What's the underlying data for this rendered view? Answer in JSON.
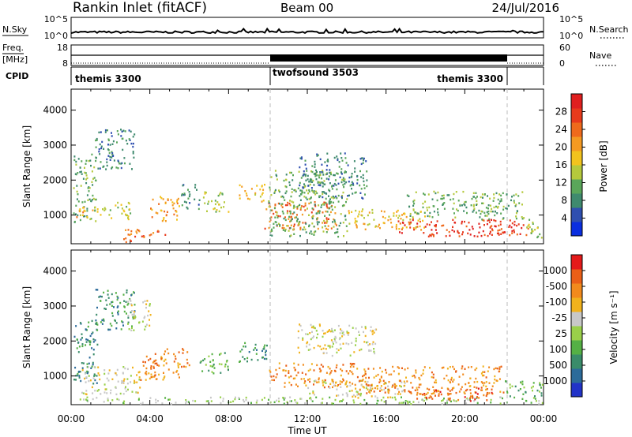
{
  "header": {
    "station": "Rankin Inlet (fitACF)",
    "beam": "Beam 00",
    "date": "24/Jul/2016"
  },
  "status_panels": {
    "nsky": {
      "label": "N.Sky",
      "ticks_left": [
        "10^5",
        "10^0"
      ],
      "ticks_right": [
        "10^5",
        "10^0"
      ],
      "right_label": "N.Search"
    },
    "freq": {
      "label_top": "Freq.",
      "label_bottom": "[MHz]",
      "ticks_left": [
        "18",
        "8"
      ],
      "ticks_right": [
        "60",
        "0"
      ],
      "right_label": "Nave"
    },
    "cpid": {
      "label": "CPID",
      "segments": [
        {
          "name": "themis 3300",
          "start_hr": 0,
          "end_hr": 10
        },
        {
          "name": "twofsound 3503",
          "start_hr": 10,
          "end_hr": 22
        },
        {
          "name": "themis 3300",
          "start_hr": 22,
          "end_hr": 24
        }
      ]
    }
  },
  "chart_data": [
    {
      "type": "heatmap",
      "name": "power",
      "ylabel": "Slant Range [km]",
      "ylim": [
        180,
        4600
      ],
      "yticks": [
        "1000",
        "2000",
        "3000",
        "4000"
      ],
      "xlim_hours": [
        0,
        24
      ],
      "xticks": [
        "00:00",
        "04:00",
        "08:00",
        "12:00",
        "16:00",
        "20:00",
        "00:00"
      ],
      "xlabel": "Time UT",
      "colorbar": {
        "label": "Power [dB]",
        "ticks": [
          "4",
          "8",
          "12",
          "16",
          "20",
          "24",
          "28"
        ],
        "colors": [
          "#0a2ee0",
          "#2f4fb0",
          "#3f8a6e",
          "#5aa65a",
          "#b5c93c",
          "#f2c31d",
          "#f49a22",
          "#ef6a1c",
          "#e83a1c",
          "#e01f1f"
        ]
      },
      "regions": [
        {
          "t": [
            0.1,
            1.3
          ],
          "r": [
            800,
            2800
          ],
          "level": 3
        },
        {
          "t": [
            0.2,
            1.1
          ],
          "r": [
            950,
            1300
          ],
          "level": 6
        },
        {
          "t": [
            1.2,
            3.2
          ],
          "r": [
            2300,
            3500
          ],
          "level": 2
        },
        {
          "t": [
            1.3,
            3.0
          ],
          "r": [
            900,
            1400
          ],
          "level": 4
        },
        {
          "t": [
            2.6,
            3.3
          ],
          "r": [
            250,
            700
          ],
          "level": 7
        },
        {
          "t": [
            3.0,
            5.0
          ],
          "r": [
            380,
            620
          ],
          "level": 7
        },
        {
          "t": [
            4.0,
            5.5
          ],
          "r": [
            850,
            1600
          ],
          "level": 6
        },
        {
          "t": [
            5.5,
            6.5
          ],
          "r": [
            1200,
            1900
          ],
          "level": 2
        },
        {
          "t": [
            6.7,
            8.0
          ],
          "r": [
            1100,
            1700
          ],
          "level": 4
        },
        {
          "t": [
            8.5,
            9.8
          ],
          "r": [
            1400,
            1900
          ],
          "level": 5
        },
        {
          "t": [
            9.8,
            13.5
          ],
          "r": [
            600,
            1400
          ],
          "level": 7
        },
        {
          "t": [
            10.0,
            14.0
          ],
          "r": [
            400,
            2300
          ],
          "level": 3
        },
        {
          "t": [
            11.5,
            15.0
          ],
          "r": [
            1500,
            2800
          ],
          "level": 2
        },
        {
          "t": [
            14.0,
            18.0
          ],
          "r": [
            600,
            1200
          ],
          "level": 5
        },
        {
          "t": [
            16.5,
            22.5
          ],
          "r": [
            400,
            900
          ],
          "level": 8
        },
        {
          "t": [
            17.0,
            23.0
          ],
          "r": [
            900,
            1700
          ],
          "level": 3
        },
        {
          "t": [
            21.5,
            23.2
          ],
          "r": [
            450,
            800
          ],
          "level": 8
        },
        {
          "t": [
            23.0,
            24.0
          ],
          "r": [
            300,
            900
          ],
          "level": 4
        }
      ]
    },
    {
      "type": "heatmap",
      "name": "velocity",
      "ylabel": "Slant Range [km]",
      "ylim": [
        180,
        4600
      ],
      "yticks": [
        "1000",
        "2000",
        "3000",
        "4000"
      ],
      "xlim_hours": [
        0,
        24
      ],
      "xticks": [
        "00:00",
        "04:00",
        "08:00",
        "12:00",
        "16:00",
        "20:00",
        "00:00"
      ],
      "xlabel": "Time UT",
      "colorbar": {
        "label": "Velocity [m s⁻¹]",
        "ticks": [
          "1000",
          "500",
          "100",
          "25",
          "-25",
          "-100",
          "-500",
          "-1000"
        ],
        "colors": [
          "#2233c8",
          "#2c6b9a",
          "#3a8c6a",
          "#55b045",
          "#9ad04a",
          "#c8c8c8",
          "#f1b21d",
          "#f28a1c",
          "#ea5f17",
          "#e41a1a"
        ]
      },
      "regions": [
        {
          "t": [
            0.1,
            1.3
          ],
          "r": [
            800,
            2600
          ],
          "level": 2
        },
        {
          "t": [
            1.2,
            3.2
          ],
          "r": [
            2300,
            3500
          ],
          "level": 2
        },
        {
          "t": [
            2.8,
            4.0
          ],
          "r": [
            2300,
            3200
          ],
          "level": 5
        },
        {
          "t": [
            0.5,
            3.5
          ],
          "r": [
            500,
            1300
          ],
          "level": 5
        },
        {
          "t": [
            0.3,
            24.0
          ],
          "r": [
            200,
            420
          ],
          "level": 4
        },
        {
          "t": [
            3.5,
            6.0
          ],
          "r": [
            900,
            1800
          ],
          "level": 7
        },
        {
          "t": [
            6.5,
            8.0
          ],
          "r": [
            1100,
            1700
          ],
          "level": 3
        },
        {
          "t": [
            8.5,
            10.0
          ],
          "r": [
            1400,
            2000
          ],
          "level": 2
        },
        {
          "t": [
            10.0,
            14.5
          ],
          "r": [
            700,
            1400
          ],
          "level": 7
        },
        {
          "t": [
            11.5,
            15.5
          ],
          "r": [
            1600,
            2500
          ],
          "level": 5
        },
        {
          "t": [
            12.0,
            17.0
          ],
          "r": [
            400,
            900
          ],
          "level": 5
        },
        {
          "t": [
            14.5,
            22.0
          ],
          "r": [
            500,
            1300
          ],
          "level": 7
        },
        {
          "t": [
            17.5,
            21.5
          ],
          "r": [
            300,
            700
          ],
          "level": 8
        },
        {
          "t": [
            22.0,
            24.0
          ],
          "r": [
            400,
            900
          ],
          "level": 3
        }
      ]
    }
  ]
}
